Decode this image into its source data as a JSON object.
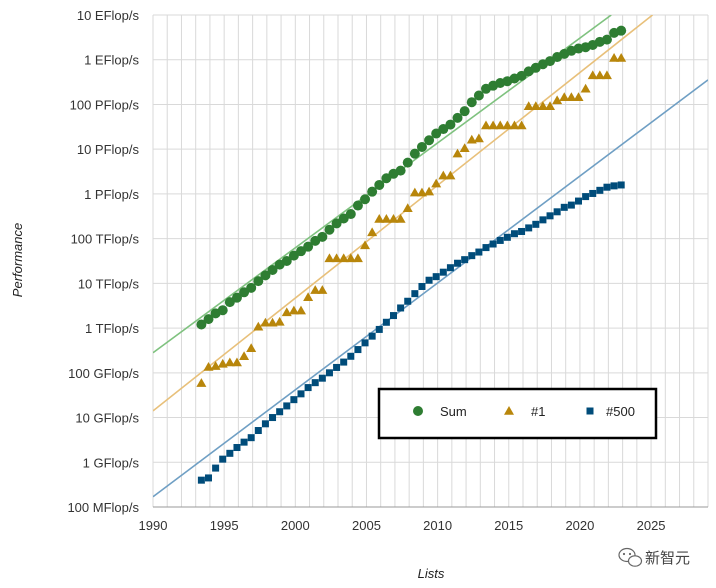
{
  "chart_data": {
    "type": "scatter",
    "title": "",
    "xlabel": "Lists",
    "ylabel": "Performance",
    "xlim": [
      1990,
      2029
    ],
    "ylim_log10": [
      5,
      16
    ],
    "x_ticks": [
      1990,
      1995,
      2000,
      2005,
      2010,
      2015,
      2020,
      2025
    ],
    "y_ticks": [
      {
        "exp": 5,
        "label": "100 MFlop/s"
      },
      {
        "exp": 6,
        "label": "1 GFlop/s"
      },
      {
        "exp": 7,
        "label": "10 GFlop/s"
      },
      {
        "exp": 8,
        "label": "100 GFlop/s"
      },
      {
        "exp": 9,
        "label": "1 TFlop/s"
      },
      {
        "exp": 10,
        "label": "10 TFlop/s"
      },
      {
        "exp": 11,
        "label": "100 TFlop/s"
      },
      {
        "exp": 12,
        "label": "1 PFlop/s"
      },
      {
        "exp": 13,
        "label": "10 PFlop/s"
      },
      {
        "exp": 14,
        "label": "100 PFlop/s"
      },
      {
        "exp": 15,
        "label": "1 EFlop/s"
      },
      {
        "exp": 16,
        "label": "10 EFlop/s"
      }
    ],
    "y_scale": "log",
    "grid": true,
    "legend_position": "lower-right",
    "series": [
      {
        "name": "Sum",
        "marker": "circle",
        "color": "#2e7d32",
        "x": [
          1993.4,
          1993.9,
          1994.4,
          1994.9,
          1995.4,
          1995.9,
          1996.4,
          1996.9,
          1997.4,
          1997.9,
          1998.4,
          1998.9,
          1999.4,
          1999.9,
          2000.4,
          2000.9,
          2001.4,
          2001.9,
          2002.4,
          2002.9,
          2003.4,
          2003.9,
          2004.4,
          2004.9,
          2005.4,
          2005.9,
          2006.4,
          2006.9,
          2007.4,
          2007.9,
          2008.4,
          2008.9,
          2009.4,
          2009.9,
          2010.4,
          2010.9,
          2011.4,
          2011.9,
          2012.4,
          2012.9,
          2013.4,
          2013.9,
          2014.4,
          2014.9,
          2015.4,
          2015.9,
          2016.4,
          2016.9,
          2017.4,
          2017.9,
          2018.4,
          2018.9,
          2019.4,
          2019.9,
          2020.4,
          2020.9,
          2021.4,
          2021.9,
          2022.4,
          2022.9
        ],
        "y_log10": [
          9.08,
          9.2,
          9.33,
          9.4,
          9.58,
          9.68,
          9.8,
          9.9,
          10.05,
          10.18,
          10.3,
          10.42,
          10.5,
          10.62,
          10.72,
          10.82,
          10.95,
          11.04,
          11.2,
          11.34,
          11.45,
          11.55,
          11.74,
          11.88,
          12.05,
          12.2,
          12.35,
          12.45,
          12.52,
          12.7,
          12.9,
          13.05,
          13.2,
          13.35,
          13.45,
          13.55,
          13.7,
          13.85,
          14.05,
          14.2,
          14.35,
          14.42,
          14.48,
          14.52,
          14.58,
          14.64,
          14.74,
          14.82,
          14.9,
          14.97,
          15.06,
          15.13,
          15.2,
          15.25,
          15.28,
          15.33,
          15.4,
          15.45,
          15.6,
          15.65
        ]
      },
      {
        "name": "#1",
        "marker": "triangle",
        "color": "#b8860b",
        "x": [
          1993.4,
          1993.9,
          1994.4,
          1994.9,
          1995.4,
          1995.9,
          1996.4,
          1996.9,
          1997.4,
          1997.9,
          1998.4,
          1998.9,
          1999.4,
          1999.9,
          2000.4,
          2000.9,
          2001.4,
          2001.9,
          2002.4,
          2002.9,
          2003.4,
          2003.9,
          2004.4,
          2004.9,
          2005.4,
          2005.9,
          2006.4,
          2006.9,
          2007.4,
          2007.9,
          2008.4,
          2008.9,
          2009.4,
          2009.9,
          2010.4,
          2010.9,
          2011.4,
          2011.9,
          2012.4,
          2012.9,
          2013.4,
          2013.9,
          2014.4,
          2014.9,
          2015.4,
          2015.9,
          2016.4,
          2016.9,
          2017.4,
          2017.9,
          2018.4,
          2018.9,
          2019.4,
          2019.9,
          2020.4,
          2020.9,
          2021.4,
          2021.9,
          2022.4,
          2022.9
        ],
        "y_log10": [
          7.77,
          8.13,
          8.15,
          8.2,
          8.23,
          8.23,
          8.37,
          8.55,
          9.03,
          9.12,
          9.12,
          9.14,
          9.35,
          9.39,
          9.39,
          9.69,
          9.85,
          9.85,
          10.56,
          10.56,
          10.56,
          10.56,
          10.56,
          10.85,
          11.14,
          11.44,
          11.44,
          11.44,
          11.44,
          11.68,
          12.03,
          12.03,
          12.05,
          12.23,
          12.41,
          12.41,
          12.9,
          13.02,
          13.21,
          13.24,
          13.53,
          13.53,
          13.53,
          13.53,
          13.53,
          13.53,
          13.96,
          13.96,
          13.96,
          13.96,
          14.09,
          14.16,
          14.16,
          14.16,
          14.35,
          14.65,
          14.65,
          14.65,
          15.04,
          15.04
        ]
      },
      {
        "name": "#500",
        "marker": "square",
        "color": "#004c7a",
        "x": [
          1993.4,
          1993.9,
          1994.4,
          1994.9,
          1995.4,
          1995.9,
          1996.4,
          1996.9,
          1997.4,
          1997.9,
          1998.4,
          1998.9,
          1999.4,
          1999.9,
          2000.4,
          2000.9,
          2001.4,
          2001.9,
          2002.4,
          2002.9,
          2003.4,
          2003.9,
          2004.4,
          2004.9,
          2005.4,
          2005.9,
          2006.4,
          2006.9,
          2007.4,
          2007.9,
          2008.4,
          2008.9,
          2009.4,
          2009.9,
          2010.4,
          2010.9,
          2011.4,
          2011.9,
          2012.4,
          2012.9,
          2013.4,
          2013.9,
          2014.4,
          2014.9,
          2015.4,
          2015.9,
          2016.4,
          2016.9,
          2017.4,
          2017.9,
          2018.4,
          2018.9,
          2019.4,
          2019.9,
          2020.4,
          2020.9,
          2021.4,
          2021.9,
          2022.4,
          2022.9
        ],
        "y_log10": [
          5.6,
          5.65,
          5.87,
          6.07,
          6.2,
          6.33,
          6.45,
          6.55,
          6.71,
          6.86,
          7.0,
          7.13,
          7.26,
          7.4,
          7.53,
          7.67,
          7.78,
          7.88,
          8.0,
          8.12,
          8.24,
          8.37,
          8.52,
          8.67,
          8.82,
          8.97,
          9.13,
          9.28,
          9.45,
          9.6,
          9.77,
          9.93,
          10.07,
          10.15,
          10.25,
          10.35,
          10.45,
          10.53,
          10.62,
          10.7,
          10.8,
          10.88,
          10.96,
          11.03,
          11.11,
          11.16,
          11.24,
          11.32,
          11.42,
          11.51,
          11.6,
          11.7,
          11.75,
          11.84,
          11.94,
          12.01,
          12.08,
          12.15,
          12.18,
          12.2
        ]
      }
    ],
    "trendlines": [
      {
        "series": "Sum",
        "color": "#7fc27f",
        "x": [
          1990,
          2022.2
        ],
        "y_log10": [
          8.45,
          16.0
        ]
      },
      {
        "series": "#1",
        "color": "#e8c07a",
        "x": [
          1990,
          2025.1
        ],
        "y_log10": [
          7.15,
          16.0
        ]
      },
      {
        "series": "#500",
        "color": "#6f9fc4",
        "x": [
          1990,
          2029
        ],
        "y_log10": [
          5.23,
          14.55
        ]
      }
    ]
  },
  "watermark": {
    "text": "新智元",
    "icon": "wechat-icon"
  }
}
